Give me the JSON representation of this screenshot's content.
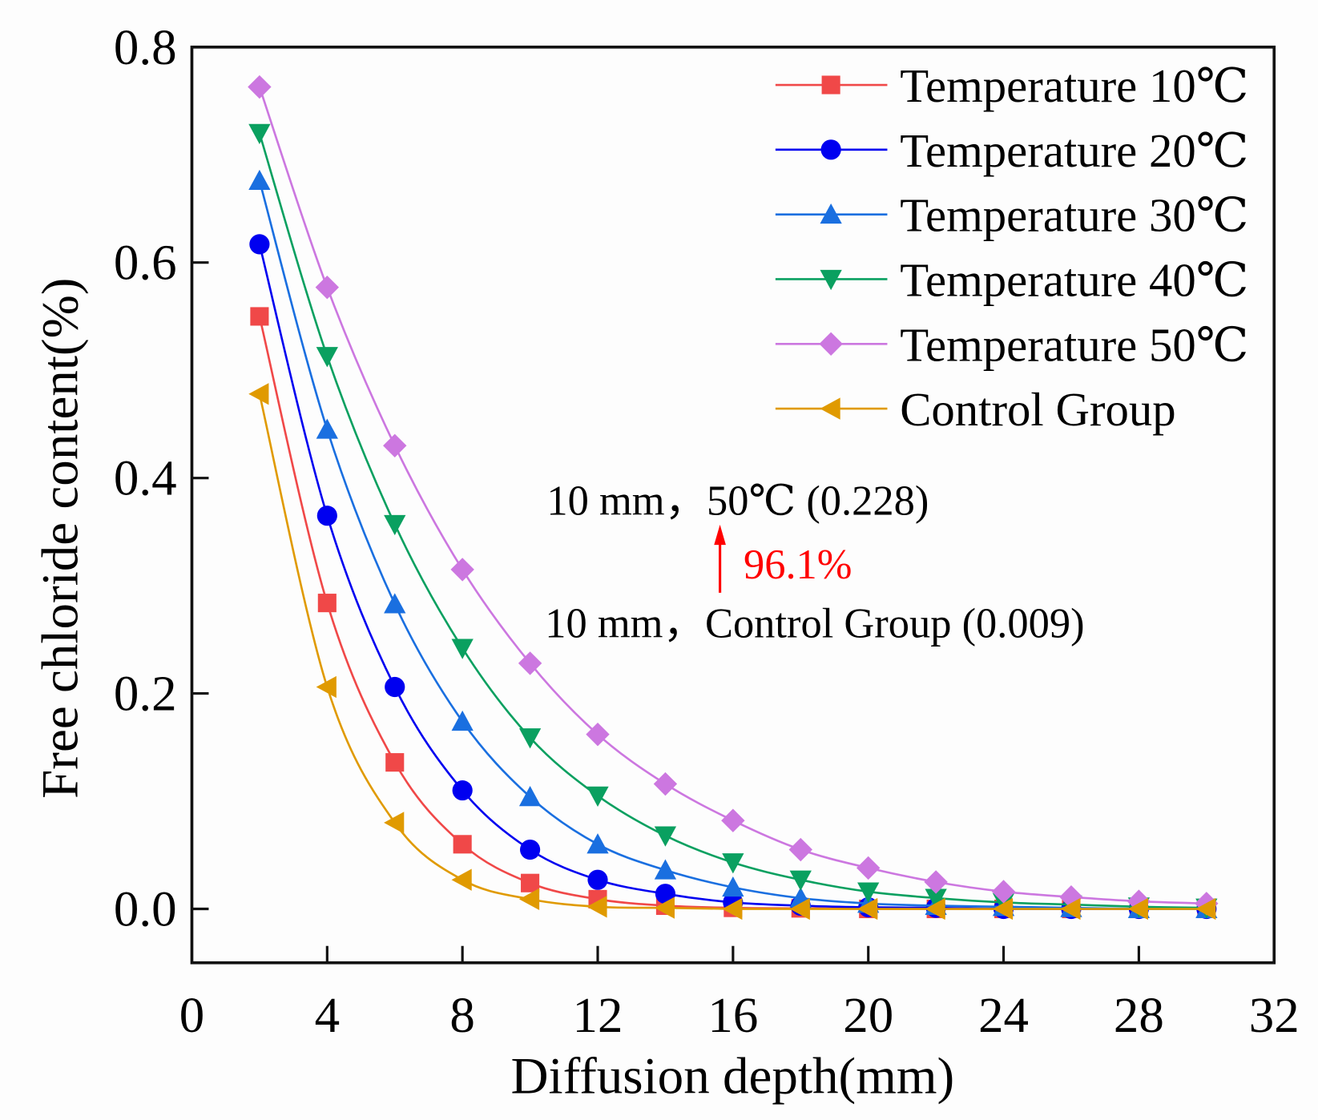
{
  "chart_data": {
    "type": "line",
    "xlabel": "Diffusion depth(mm)",
    "ylabel": "Free chloride content(%)",
    "xlim": [
      0,
      32
    ],
    "ylim": [
      -0.05,
      0.8
    ],
    "xticks": [
      0,
      4,
      8,
      12,
      16,
      20,
      24,
      28,
      32
    ],
    "yticks": [
      "0.0",
      "0.2",
      "0.4",
      "0.6",
      "0.8"
    ],
    "grid": false,
    "legend_position": "top-right",
    "x": [
      2,
      4,
      6,
      8,
      10,
      12,
      14,
      16,
      18,
      20,
      22,
      24,
      26,
      28,
      30
    ],
    "series": [
      {
        "name": "Temperature 10℃",
        "color": "#f04848",
        "marker": "square",
        "values": [
          0.55,
          0.284,
          0.136,
          0.06,
          0.024,
          0.009,
          0.003,
          0.001,
          0.0005,
          0,
          0,
          0,
          0,
          0,
          0
        ]
      },
      {
        "name": "Temperature 20℃",
        "color": "#0000f0",
        "marker": "circle",
        "values": [
          0.617,
          0.365,
          0.206,
          0.11,
          0.055,
          0.027,
          0.014,
          0.006,
          0.003,
          0.0015,
          0.001,
          0,
          0,
          0,
          0
        ]
      },
      {
        "name": "Temperature 30℃",
        "color": "#1a6fe0",
        "marker": "triangle-up",
        "values": [
          0.676,
          0.445,
          0.283,
          0.174,
          0.104,
          0.06,
          0.036,
          0.02,
          0.01,
          0.005,
          0.003,
          0.002,
          0.001,
          0,
          0
        ]
      },
      {
        "name": "Temperature 40℃",
        "color": "#0aa060",
        "marker": "triangle-down",
        "values": [
          0.72,
          0.513,
          0.357,
          0.242,
          0.159,
          0.105,
          0.068,
          0.043,
          0.027,
          0.016,
          0.01,
          0.006,
          0.004,
          0.002,
          0.001
        ]
      },
      {
        "name": "Temperature 50℃",
        "color": "#cc77e0",
        "marker": "diamond",
        "values": [
          0.763,
          0.577,
          0.43,
          0.315,
          0.228,
          0.162,
          0.116,
          0.082,
          0.055,
          0.038,
          0.025,
          0.016,
          0.011,
          0.007,
          0.005
        ]
      },
      {
        "name": "Control Group",
        "color": "#e09a00",
        "marker": "triangle-left",
        "values": [
          0.478,
          0.206,
          0.08,
          0.027,
          0.009,
          0.002,
          0.001,
          0,
          0,
          0,
          0,
          0,
          0,
          0,
          0
        ]
      }
    ],
    "annotations": {
      "top": "10 mm，50℃ (0.228)",
      "increase": "96.1%",
      "increase_color": "#ff0000",
      "bottom": "10 mm，Control Group (0.009)"
    }
  }
}
